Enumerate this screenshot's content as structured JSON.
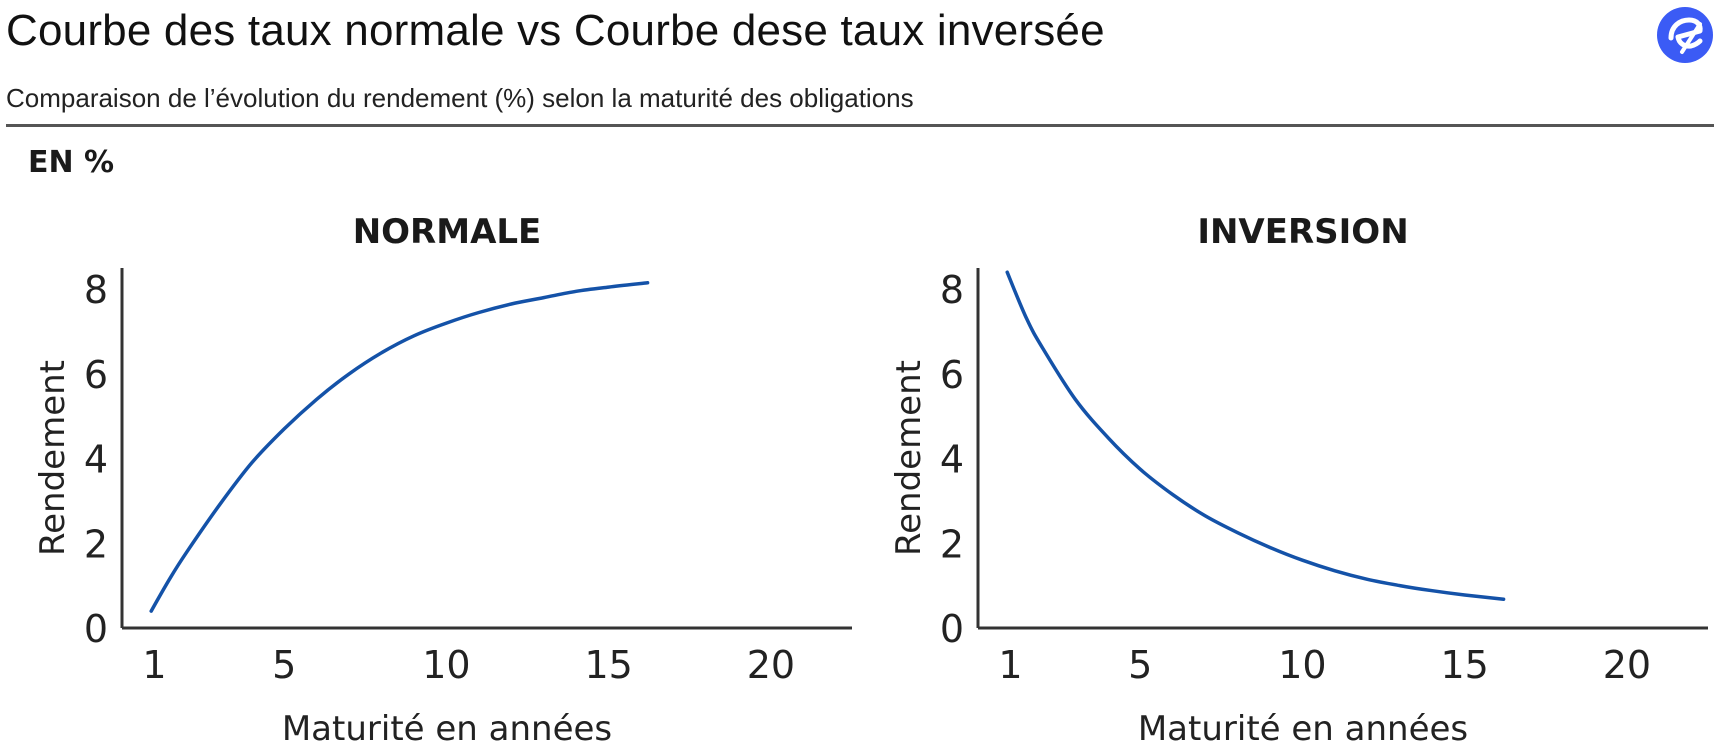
{
  "header": {
    "title": "Courbe des taux normale vs Courbe dese taux inversée",
    "subtitle": "Comparaison de l’évolution du rendement (%) selon la maturité des obligations",
    "logo_icon": "e-logo-icon",
    "brand_color": "#3b5bf5"
  },
  "chart_data": [
    {
      "type": "line",
      "title": "NORMALE",
      "unit_label": "EN %",
      "xlabel": "Maturité en années",
      "ylabel": "Rendement",
      "xticks": [
        1,
        5,
        10,
        15,
        20
      ],
      "yticks": [
        0,
        2,
        4,
        6,
        8
      ],
      "xlim": [
        0,
        22.5
      ],
      "ylim": [
        0,
        8.5
      ],
      "grid": false,
      "line_color": "#1452a8",
      "series": [
        {
          "x": [
            0.9,
            1.5,
            2,
            3,
            4,
            5,
            6,
            7,
            8,
            9,
            10,
            11,
            12,
            13,
            14,
            15,
            16.2
          ],
          "values": [
            0.4,
            1.2,
            1.8,
            2.9,
            3.9,
            4.7,
            5.4,
            6.0,
            6.5,
            6.9,
            7.2,
            7.45,
            7.65,
            7.8,
            7.95,
            8.05,
            8.15
          ]
        }
      ]
    },
    {
      "type": "line",
      "title": "INVERSION",
      "xlabel": "Maturité en années",
      "ylabel": "Rendement",
      "xticks": [
        1,
        5,
        10,
        15,
        20
      ],
      "yticks": [
        0,
        2,
        4,
        6,
        8
      ],
      "xlim": [
        0,
        22.5
      ],
      "ylim": [
        0,
        8.5
      ],
      "grid": false,
      "line_color": "#1452a8",
      "series": [
        {
          "x": [
            0.9,
            1.5,
            2,
            3,
            4,
            5,
            6,
            7,
            8,
            9,
            10,
            11,
            12,
            13,
            14,
            15,
            16.2
          ],
          "values": [
            8.4,
            7.3,
            6.6,
            5.4,
            4.5,
            3.75,
            3.15,
            2.65,
            2.25,
            1.9,
            1.6,
            1.35,
            1.15,
            1.0,
            0.88,
            0.78,
            0.68
          ]
        }
      ]
    }
  ]
}
